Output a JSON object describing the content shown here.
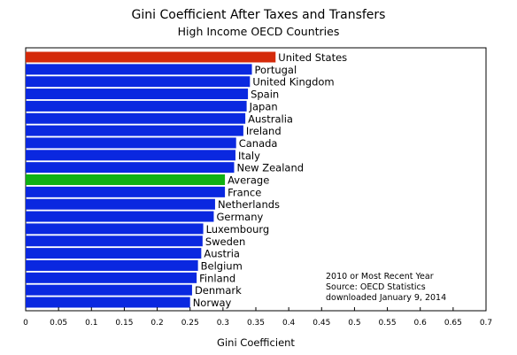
{
  "chart_data": {
    "type": "bar",
    "orientation": "horizontal",
    "title": "Gini Coefficient After Taxes and Transfers",
    "subtitle": "High Income OECD Countries",
    "xlabel": "Gini Coefficient",
    "ylabel": "",
    "xlim": [
      0,
      0.7
    ],
    "xticks": [
      "0",
      "0.05",
      "0.1",
      "0.15",
      "0.2",
      "0.25",
      "0.3",
      "0.35",
      "0.4",
      "0.45",
      "0.5",
      "0.55",
      "0.6",
      "0.65",
      "0.7"
    ],
    "grid": false,
    "categories": [
      "United States",
      "Portugal",
      "United Kingdom",
      "Spain",
      "Japan",
      "Australia",
      "Ireland",
      "Canada",
      "Italy",
      "New Zealand",
      "Average",
      "France",
      "Netherlands",
      "Germany",
      "Luxembourg",
      "Sweden",
      "Austria",
      "Belgium",
      "Finland",
      "Denmark",
      "Norway"
    ],
    "values": [
      0.38,
      0.344,
      0.341,
      0.338,
      0.336,
      0.334,
      0.331,
      0.32,
      0.319,
      0.317,
      0.303,
      0.303,
      0.288,
      0.286,
      0.27,
      0.269,
      0.267,
      0.262,
      0.26,
      0.253,
      0.25
    ],
    "bar_colors": [
      "#d42a0a",
      "#0a28e0",
      "#0a28e0",
      "#0a28e0",
      "#0a28e0",
      "#0a28e0",
      "#0a28e0",
      "#0a28e0",
      "#0a28e0",
      "#0a28e0",
      "#10b013",
      "#0a28e0",
      "#0a28e0",
      "#0a28e0",
      "#0a28e0",
      "#0a28e0",
      "#0a28e0",
      "#0a28e0",
      "#0a28e0",
      "#0a28e0",
      "#0a28e0"
    ],
    "annotation": [
      "2010 or Most Recent Year",
      "Source:  OECD Statistics",
      "downloaded January 9, 2014"
    ]
  }
}
